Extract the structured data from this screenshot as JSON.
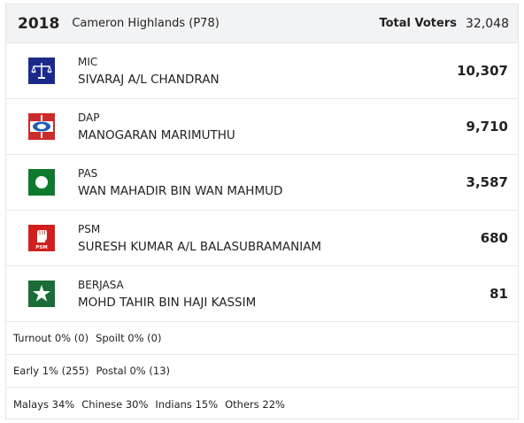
{
  "header": {
    "year": "2018",
    "seat": "Cameron Highlands (P78)",
    "total_voters_label": "Total Voters",
    "total_voters_value": "32,048"
  },
  "candidates": [
    {
      "party": "MIC",
      "name": "SIVARAJ A/L CHANDRAN",
      "votes": "10,307",
      "logo": "scales-icon",
      "color": "#1b2a8a"
    },
    {
      "party": "DAP",
      "name": "MANOGARAN MARIMUTHU",
      "votes": "9,710",
      "logo": "rocket-eye-icon",
      "color": "#cc2b2b"
    },
    {
      "party": "PAS",
      "name": "WAN MAHADIR BIN WAN MAHMUD",
      "votes": "3,587",
      "logo": "moon-circle-icon",
      "color": "#0d7a2e"
    },
    {
      "party": "PSM",
      "name": "SURESH KUMAR A/L BALASUBRAMANIAM",
      "votes": "680",
      "logo": "fist-icon",
      "color": "#d11f1f",
      "logo_text": "PSM"
    },
    {
      "party": "BERJASA",
      "name": "MOHD TAHIR BIN HAJI KASSIM",
      "votes": "81",
      "logo": "star-icon",
      "color": "#1a6d37"
    }
  ],
  "stats": {
    "turnout": "Turnout 0% (0)",
    "spoilt": "Spoilt 0% (0)",
    "early": "Early 1% (255)",
    "postal": "Postal 0% (13)",
    "malays": "Malays 34%",
    "chinese": "Chinese 30%",
    "indians": "Indians 15%",
    "others": "Others 22%"
  }
}
